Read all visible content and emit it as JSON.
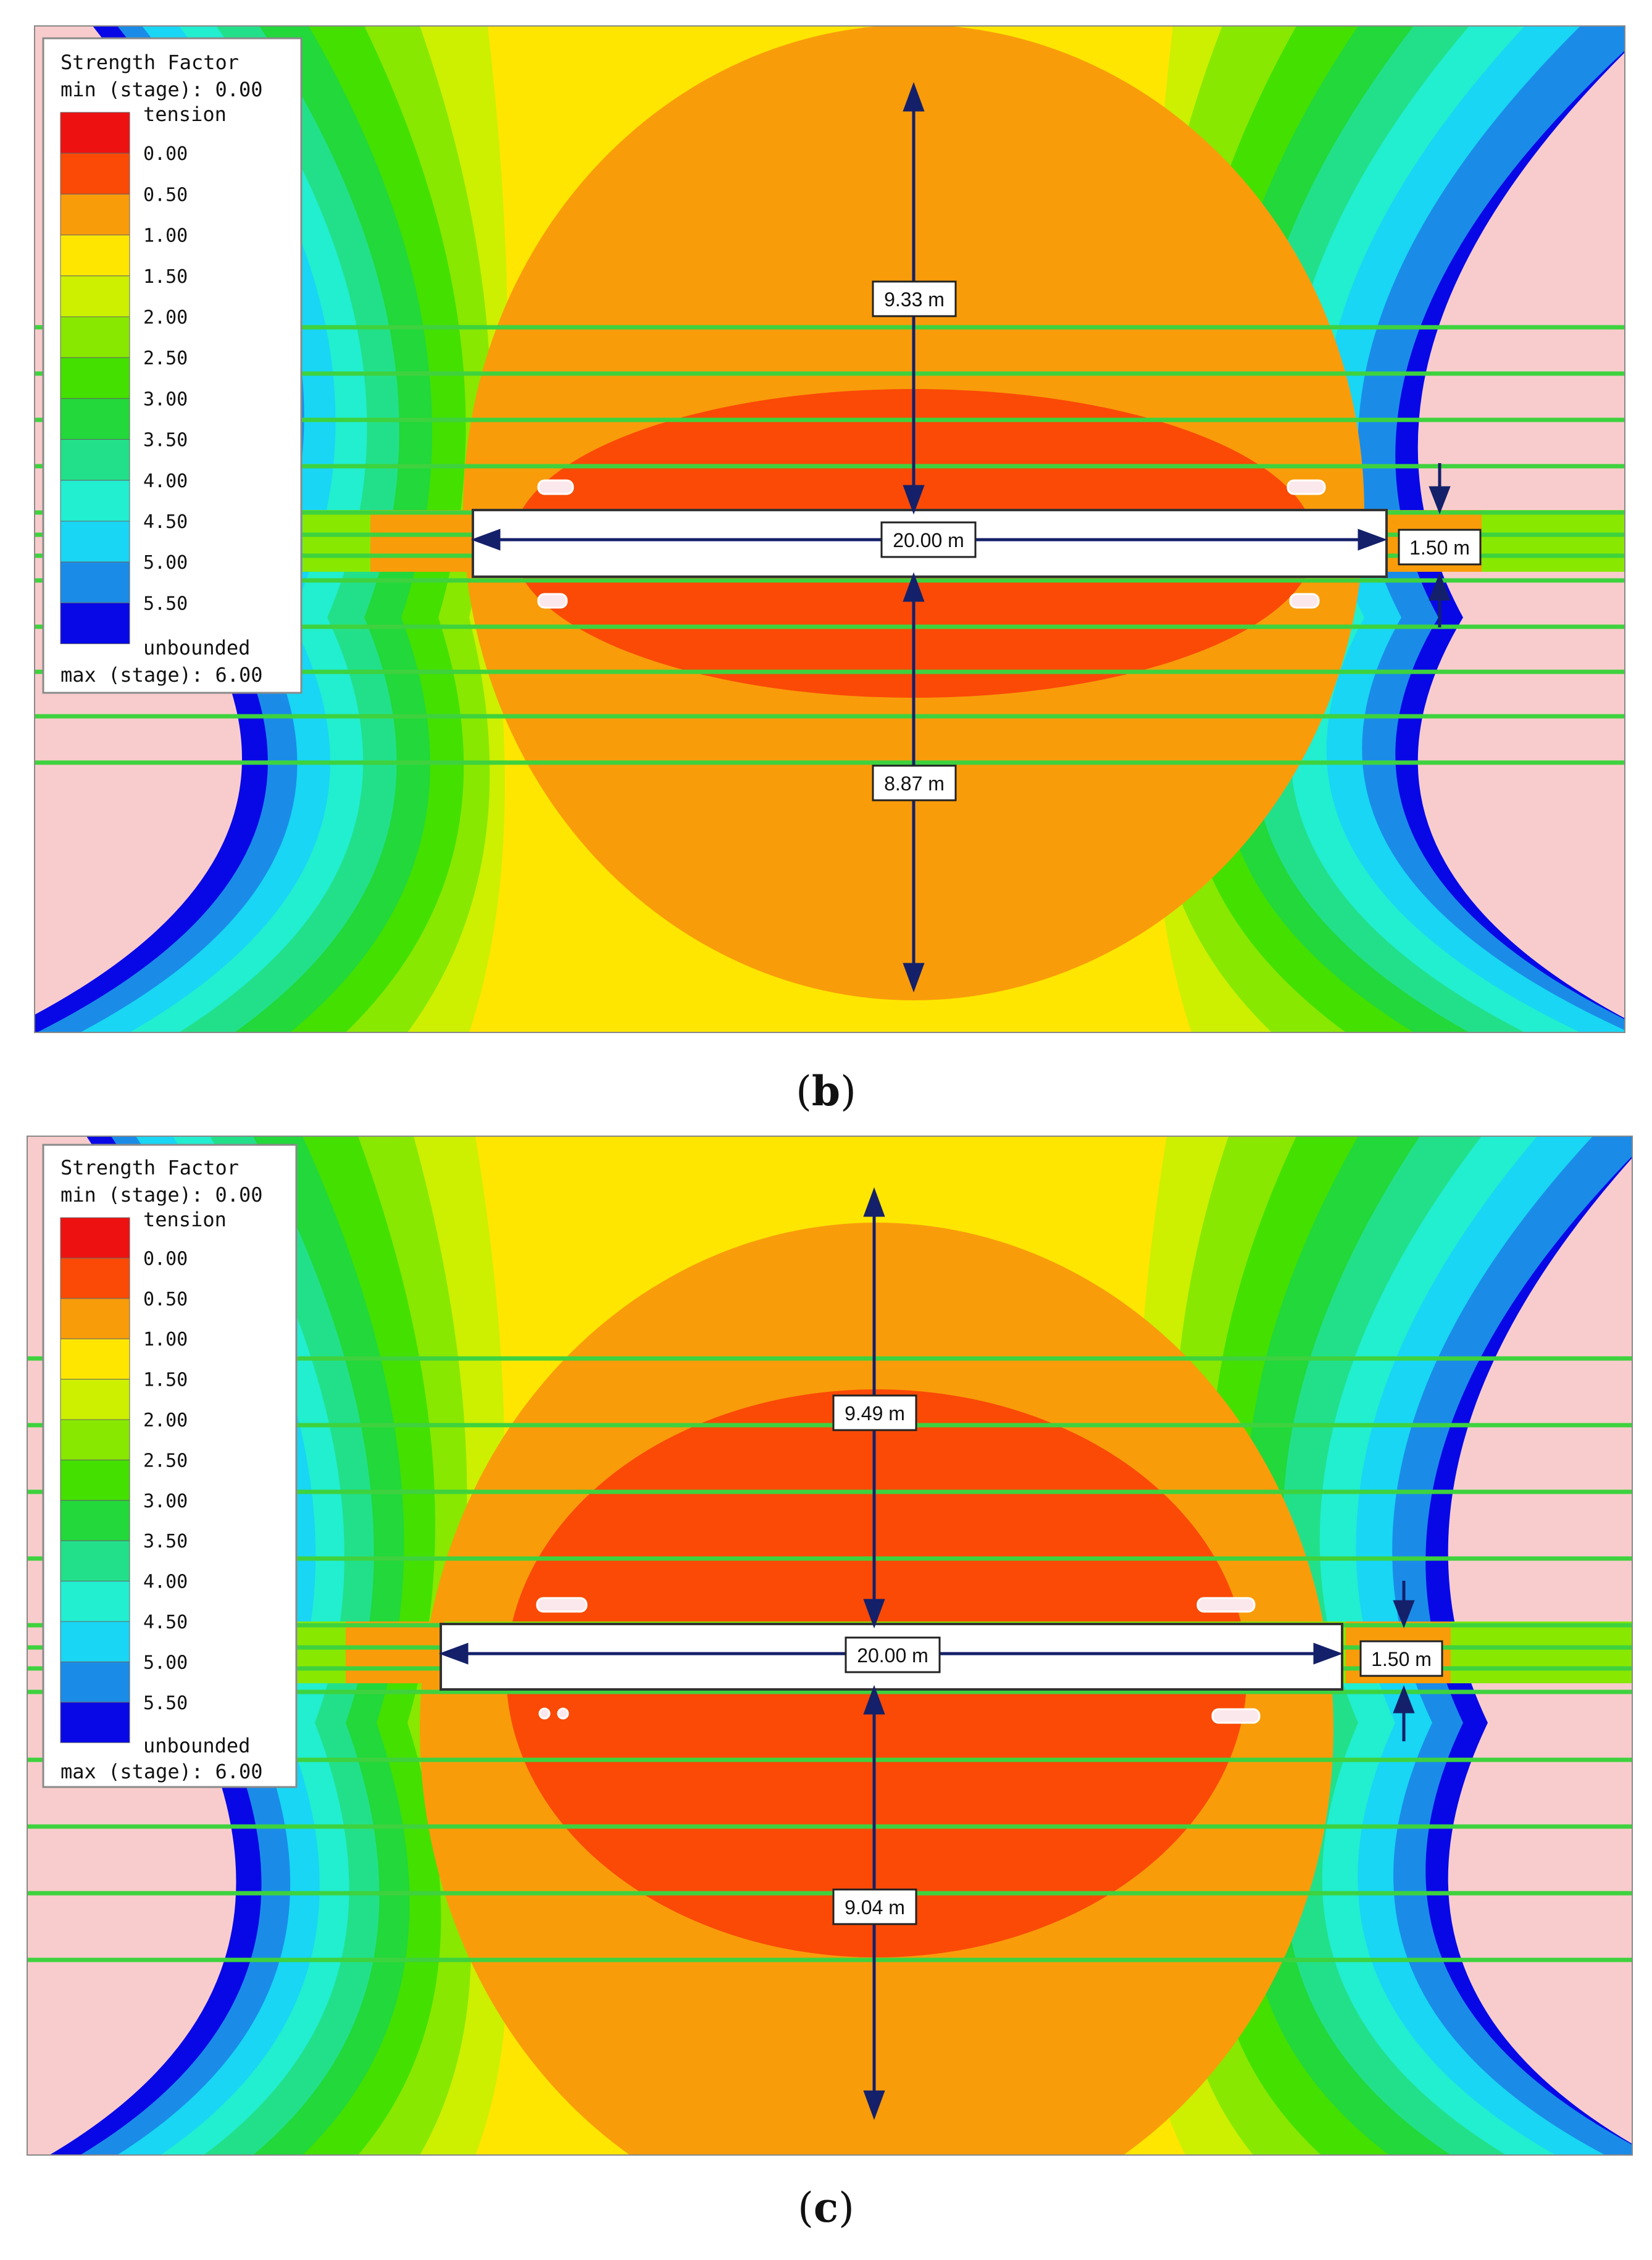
{
  "figure": {
    "panels": [
      {
        "id": "b",
        "caption_open": "(",
        "caption_letter": "b",
        "caption_close": ")",
        "legend": {
          "title": "Strength Factor",
          "min_label": "min (stage): 0.00",
          "max_label": "max (stage): 6.00",
          "top_label": "tension",
          "bottom_label": "unbounded",
          "ticks": [
            "0.00",
            "0.50",
            "1.00",
            "1.50",
            "2.00",
            "2.50",
            "3.00",
            "3.50",
            "4.00",
            "4.50",
            "5.00",
            "5.50"
          ]
        },
        "dimensions": {
          "top_height": "9.33 m",
          "width": "20.00 m",
          "thickness": "1.50 m",
          "bottom_height": "8.87 m"
        }
      },
      {
        "id": "c",
        "caption_open": "(",
        "caption_letter": "c",
        "caption_close": ")",
        "legend": {
          "title": "Strength Factor",
          "min_label": "min (stage): 0.00",
          "max_label": "max (stage): 6.00",
          "top_label": "tension",
          "bottom_label": "unbounded",
          "ticks": [
            "0.00",
            "0.50",
            "1.00",
            "1.50",
            "2.00",
            "2.50",
            "3.00",
            "3.50",
            "4.00",
            "4.50",
            "5.00",
            "5.50"
          ]
        },
        "dimensions": {
          "top_height": "9.49 m",
          "width": "20.00 m",
          "thickness": "1.50 m",
          "bottom_height": "9.04 m"
        }
      }
    ]
  },
  "colors": {
    "scale": [
      "#ee1111",
      "#fa4a06",
      "#f99c0a",
      "#ffe600",
      "#ccf000",
      "#88e800",
      "#44e000",
      "#22d83a",
      "#22e08a",
      "#22eed0",
      "#18d6f4",
      "#1a8ce8",
      "#0808e6"
    ],
    "horizon_line": "#3ed23e",
    "dimension_line": "#14206a",
    "opening_fill": "#ffffff",
    "hole_fill": "#fbe8ec",
    "far_field_left": "#f8cccc"
  }
}
